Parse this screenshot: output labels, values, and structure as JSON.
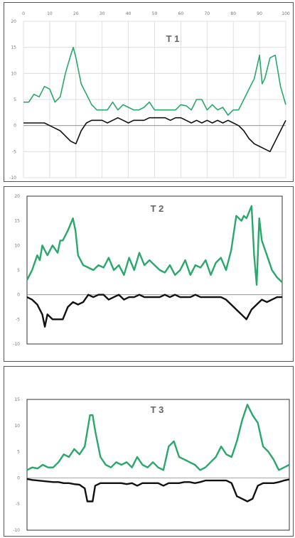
{
  "colors": {
    "green": "#28a86b",
    "black": "#111111"
  },
  "chart_data": [
    {
      "type": "line",
      "title": "T 1",
      "x_ticks": [
        "0",
        "10",
        "20",
        "30",
        "40",
        "50",
        "60",
        "70",
        "80",
        "90",
        "100"
      ],
      "y_ticks": [
        "20",
        "15",
        "10",
        "5",
        "0",
        "-5",
        "-10"
      ],
      "xlim": [
        0,
        100
      ],
      "ylim": [
        -10,
        20
      ],
      "grid": true,
      "series": [
        {
          "color": "#28a86b",
          "width": 1.6,
          "x": [
            0,
            2,
            4,
            6,
            8,
            10,
            12,
            14,
            16,
            18,
            19,
            20,
            22,
            24,
            26,
            28,
            30,
            32,
            34,
            36,
            38,
            40,
            42,
            44,
            46,
            48,
            50,
            52,
            54,
            56,
            58,
            60,
            62,
            64,
            66,
            68,
            70,
            72,
            74,
            76,
            78,
            80,
            82,
            84,
            86,
            88,
            90,
            91,
            92,
            94,
            96,
            98,
            100
          ],
          "y": [
            4.5,
            4.5,
            6,
            5.5,
            7.5,
            7,
            4.5,
            5.5,
            10,
            13.5,
            15,
            13,
            8,
            6,
            4,
            3,
            3,
            3,
            4.5,
            3,
            4,
            3.5,
            3,
            3,
            3.5,
            4.5,
            3,
            3,
            3,
            3,
            3,
            4,
            3.8,
            3,
            5,
            5,
            3,
            4,
            3,
            3.5,
            2,
            3,
            3,
            5,
            7,
            9,
            13.5,
            8,
            9,
            13,
            13.5,
            7.5,
            4
          ]
        },
        {
          "color": "#111111",
          "width": 1.6,
          "x": [
            0,
            4,
            8,
            10,
            12,
            14,
            16,
            18,
            20,
            22,
            24,
            26,
            28,
            30,
            32,
            34,
            36,
            38,
            40,
            42,
            44,
            46,
            48,
            50,
            52,
            54,
            56,
            58,
            60,
            62,
            64,
            66,
            68,
            70,
            72,
            74,
            76,
            78,
            80,
            82,
            84,
            86,
            88,
            90,
            92,
            94,
            96,
            98,
            100
          ],
          "y": [
            0.5,
            0.5,
            0.5,
            0,
            -0.5,
            -1,
            -2,
            -3,
            -3.5,
            -1,
            0.5,
            1,
            1,
            1,
            0.5,
            1,
            1.5,
            1,
            0.5,
            1,
            1,
            1,
            1.5,
            1.5,
            1.5,
            1.5,
            1,
            1.5,
            1.5,
            1,
            0.5,
            1,
            0.5,
            1,
            0.5,
            1,
            0.5,
            1,
            0.5,
            0,
            -1,
            -2.5,
            -3.5,
            -4,
            -4.5,
            -5,
            -3,
            -1,
            1
          ]
        }
      ]
    },
    {
      "type": "line",
      "title": "T 2",
      "y_ticks": [
        "20",
        "15",
        "10",
        "5",
        "0",
        "-5",
        "-10"
      ],
      "xlim": [
        0,
        100
      ],
      "ylim": [
        -10,
        20
      ],
      "grid": false,
      "series": [
        {
          "color": "#28a86b",
          "width": 2.4,
          "x": [
            0,
            2,
            4,
            5,
            6,
            8,
            10,
            12,
            13,
            14,
            16,
            18,
            19,
            20,
            22,
            24,
            26,
            28,
            30,
            32,
            34,
            36,
            38,
            40,
            42,
            44,
            46,
            48,
            50,
            52,
            54,
            56,
            58,
            60,
            62,
            64,
            66,
            68,
            70,
            72,
            74,
            76,
            78,
            80,
            82,
            84,
            85,
            86,
            88,
            89,
            90,
            91,
            92,
            94,
            96,
            98,
            100
          ],
          "y": [
            3,
            5,
            8,
            7,
            10,
            8,
            10,
            8.5,
            11,
            11,
            13,
            15.5,
            13,
            8,
            6,
            5.5,
            5,
            6,
            5.5,
            7.5,
            5,
            6,
            4,
            7.5,
            5,
            8.5,
            6,
            7,
            6,
            5,
            4.5,
            6,
            4,
            5,
            7,
            4,
            6,
            5.5,
            7,
            4,
            6.5,
            7.5,
            5,
            9,
            16,
            15,
            16,
            15.5,
            18,
            8,
            2,
            15.5,
            11,
            8,
            5,
            3.5,
            2.5
          ]
        },
        {
          "color": "#111111",
          "width": 2.4,
          "x": [
            0,
            2,
            4,
            6,
            7,
            8,
            10,
            12,
            14,
            16,
            18,
            20,
            22,
            24,
            26,
            28,
            30,
            32,
            34,
            36,
            38,
            40,
            42,
            44,
            46,
            48,
            50,
            52,
            54,
            56,
            58,
            60,
            62,
            64,
            66,
            68,
            70,
            72,
            74,
            76,
            78,
            80,
            82,
            84,
            86,
            88,
            90,
            92,
            94,
            96,
            98,
            100
          ],
          "y": [
            -0.5,
            -1,
            -2,
            -4,
            -6.5,
            -4,
            -5,
            -5,
            -5,
            -2.5,
            -1.5,
            -2,
            -1.5,
            0,
            -0.5,
            0,
            0,
            -1,
            -0.5,
            0,
            -1,
            -0.5,
            -0.5,
            0,
            -0.5,
            -0.5,
            -0.5,
            -0.5,
            0,
            -0.5,
            0,
            -0.5,
            -0.5,
            -0.5,
            0,
            -0.5,
            -0.5,
            -0.5,
            -0.5,
            -0.5,
            -1,
            -2,
            -3,
            -4,
            -5,
            -3,
            -2,
            -1,
            -1.5,
            -1,
            -0.5,
            -0.5
          ]
        }
      ]
    },
    {
      "type": "line",
      "title": "T 3",
      "y_ticks": [
        "15",
        "10",
        "5",
        "0",
        "-5",
        "-10"
      ],
      "xlim": [
        0,
        100
      ],
      "ylim": [
        -10,
        15
      ],
      "grid": false,
      "series": [
        {
          "color": "#28a86b",
          "width": 2.4,
          "x": [
            0,
            2,
            4,
            6,
            8,
            10,
            12,
            14,
            16,
            18,
            20,
            22,
            24,
            25,
            26,
            28,
            30,
            32,
            34,
            36,
            38,
            40,
            42,
            44,
            46,
            48,
            50,
            52,
            54,
            56,
            58,
            60,
            62,
            64,
            66,
            68,
            70,
            72,
            74,
            76,
            78,
            80,
            82,
            84,
            86,
            88,
            90,
            92,
            94,
            96,
            98,
            100
          ],
          "y": [
            1.5,
            2,
            1.8,
            2.5,
            2,
            2,
            3,
            4.5,
            4,
            5.5,
            4.5,
            6,
            12,
            12,
            9,
            4,
            2.5,
            2,
            3,
            2.5,
            3,
            2,
            4,
            2.5,
            2,
            3,
            2,
            1.5,
            6,
            7,
            4,
            3.5,
            3,
            2.5,
            1.5,
            2,
            3,
            4,
            6,
            4.5,
            4,
            7,
            11,
            14,
            12,
            10.5,
            6,
            5,
            3.5,
            1.5,
            2,
            2.5
          ]
        },
        {
          "color": "#111111",
          "width": 2.4,
          "x": [
            0,
            2,
            4,
            6,
            8,
            10,
            12,
            14,
            16,
            18,
            20,
            22,
            23,
            24,
            25,
            26,
            28,
            30,
            32,
            34,
            36,
            38,
            40,
            42,
            44,
            46,
            48,
            50,
            52,
            54,
            56,
            58,
            60,
            62,
            64,
            66,
            68,
            70,
            72,
            74,
            76,
            78,
            80,
            82,
            84,
            86,
            88,
            90,
            92,
            94,
            96,
            98,
            100
          ],
          "y": [
            -0.2,
            -0.4,
            -0.5,
            -0.6,
            -0.7,
            -0.8,
            -0.8,
            -1,
            -1,
            -1.2,
            -1.3,
            -2,
            -4.5,
            -4.5,
            -4.5,
            -1.5,
            -1,
            -1,
            -1,
            -1,
            -1,
            -1.2,
            -1,
            -1.5,
            -1,
            -1,
            -1,
            -1,
            -1.5,
            -1,
            -1,
            -1,
            -0.8,
            -0.8,
            -1,
            -0.8,
            -0.5,
            -0.5,
            -0.5,
            -0.5,
            -0.5,
            -1,
            -3.5,
            -4,
            -4.5,
            -4,
            -1.5,
            -1,
            -1,
            -1,
            -0.8,
            -0.5,
            -0.3
          ]
        }
      ]
    }
  ]
}
